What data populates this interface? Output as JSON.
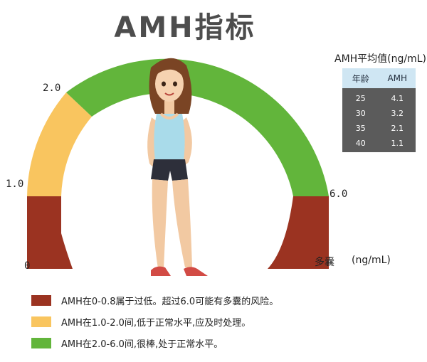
{
  "title": "AMH指标",
  "scale": {
    "label_0": "0",
    "label_1": "1.0",
    "label_2": "2.0",
    "label_6": "6.0",
    "label_many": "多囊",
    "unit": "(ng/mL)"
  },
  "zones": {
    "low_color": "#9b3321",
    "mid_color": "#f9c55f",
    "normal_color": "#62b53b"
  },
  "average_table": {
    "title": "AMH平均值(ng/mL)",
    "headers": [
      "年龄",
      "AMH"
    ],
    "rows": [
      {
        "age": "25",
        "amh": "4.1"
      },
      {
        "age": "30",
        "amh": "3.2"
      },
      {
        "age": "35",
        "amh": "2.1"
      },
      {
        "age": "40",
        "amh": "1.1"
      }
    ]
  },
  "legend": [
    {
      "color": "#9b3321",
      "text": "AMH在0-0.8属于过低。超过6.0可能有多囊的风险。"
    },
    {
      "color": "#f9c55f",
      "text": "AMH在1.0-2.0间,低于正常水平,应及时处理。"
    },
    {
      "color": "#62b53b",
      "text": "AMH在2.0-6.0间,很棒,处于正常水平。"
    }
  ],
  "illustration": "woman-figure"
}
